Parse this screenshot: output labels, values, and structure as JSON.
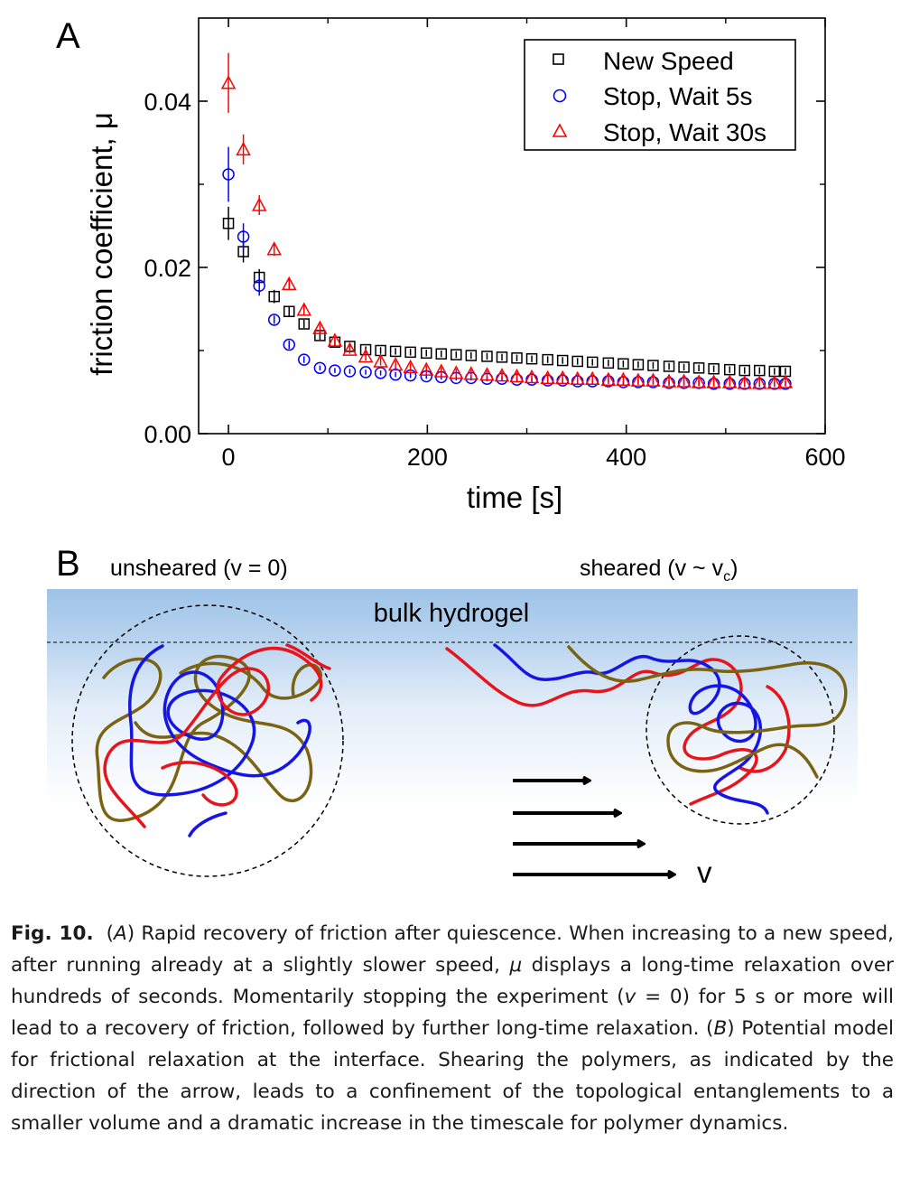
{
  "panel_a": {
    "label": "A",
    "ylabel": "friction coefficient, μ",
    "xlabel": "time [s]",
    "legend": [
      "New Speed",
      "Stop, Wait 5s",
      "Stop, Wait 30s"
    ],
    "xticks": [
      "0",
      "200",
      "400",
      "600"
    ],
    "yticks": [
      "0.00",
      "0.02",
      "0.04"
    ]
  },
  "chart_data": {
    "type": "scatter",
    "xlabel": "time [s]",
    "ylabel": "friction coefficient, μ",
    "xlim": [
      -30,
      600
    ],
    "ylim": [
      0,
      0.05
    ],
    "grid": false,
    "legend_position": "top-right",
    "series": [
      {
        "name": "New Speed",
        "marker": "square",
        "color": "#000000",
        "x": [
          0,
          15,
          31,
          46,
          61,
          76,
          92,
          107,
          122,
          138,
          153,
          168,
          183,
          199,
          214,
          229,
          244,
          260,
          275,
          290,
          305,
          321,
          336,
          351,
          366,
          382,
          397,
          412,
          427,
          443,
          458,
          473,
          488,
          504,
          519,
          534,
          549,
          560
        ],
        "y": [
          0.0253,
          0.0219,
          0.0188,
          0.0165,
          0.0147,
          0.0132,
          0.0118,
          0.011,
          0.0105,
          0.0101,
          0.01,
          0.0099,
          0.0098,
          0.0097,
          0.0096,
          0.0095,
          0.0094,
          0.0093,
          0.0092,
          0.0091,
          0.009,
          0.0089,
          0.0088,
          0.0087,
          0.0086,
          0.0085,
          0.0084,
          0.0083,
          0.0082,
          0.0081,
          0.008,
          0.0079,
          0.0078,
          0.0077,
          0.0076,
          0.0076,
          0.0075,
          0.0075
        ],
        "err": [
          0.002,
          0.0013,
          0.001,
          0.0008,
          0.0006,
          0.0005,
          0.0005,
          0.0004,
          0.0004,
          0.0004,
          0.0004,
          0.0004,
          0.0004,
          0.0004,
          0.0004,
          0.0004,
          0.0004,
          0.0004,
          0.0004,
          0.0004,
          0.0004,
          0.0004,
          0.0004,
          0.0004,
          0.0004,
          0.0004,
          0.0004,
          0.0004,
          0.0004,
          0.0004,
          0.0004,
          0.0004,
          0.0004,
          0.0004,
          0.0004,
          0.0004,
          0.0004,
          0.0004
        ]
      },
      {
        "name": "Stop, Wait 5s",
        "marker": "circle",
        "color": "#0000ff",
        "x": [
          0,
          15,
          31,
          46,
          61,
          76,
          92,
          107,
          122,
          138,
          153,
          168,
          183,
          199,
          214,
          229,
          244,
          260,
          275,
          290,
          305,
          321,
          336,
          351,
          366,
          382,
          397,
          412,
          427,
          443,
          458,
          473,
          488,
          504,
          519,
          534,
          549,
          560
        ],
        "y": [
          0.0312,
          0.0237,
          0.0178,
          0.0137,
          0.0107,
          0.0089,
          0.0079,
          0.0076,
          0.0075,
          0.0074,
          0.0073,
          0.0071,
          0.007,
          0.0069,
          0.0068,
          0.0067,
          0.0067,
          0.0066,
          0.0066,
          0.0065,
          0.0065,
          0.0064,
          0.0064,
          0.0063,
          0.0063,
          0.0063,
          0.0062,
          0.0062,
          0.0062,
          0.0061,
          0.0061,
          0.0061,
          0.006,
          0.006,
          0.006,
          0.006,
          0.006,
          0.006
        ],
        "err": [
          0.0033,
          0.0016,
          0.0012,
          0.0005,
          0.0005,
          0.0004,
          0.0003,
          0.0003,
          0.0003,
          0.0003,
          0.0003,
          0.0003,
          0.0003,
          0.0003,
          0.0003,
          0.0003,
          0.0003,
          0.0003,
          0.0003,
          0.0003,
          0.0003,
          0.0003,
          0.0003,
          0.0003,
          0.0003,
          0.0003,
          0.0003,
          0.0003,
          0.0003,
          0.0003,
          0.0003,
          0.0003,
          0.0003,
          0.0003,
          0.0003,
          0.0003,
          0.0003,
          0.0003
        ]
      },
      {
        "name": "Stop, Wait 30s",
        "marker": "triangle",
        "color": "#ff0000",
        "x": [
          0,
          15,
          31,
          46,
          61,
          76,
          92,
          107,
          122,
          138,
          153,
          168,
          183,
          199,
          214,
          229,
          244,
          260,
          275,
          290,
          305,
          321,
          336,
          351,
          366,
          382,
          397,
          412,
          427,
          443,
          458,
          473,
          488,
          504,
          519,
          534,
          549,
          560
        ],
        "y": [
          0.0422,
          0.0342,
          0.0275,
          0.0222,
          0.018,
          0.0149,
          0.0127,
          0.0112,
          0.0101,
          0.0093,
          0.0087,
          0.0083,
          0.008,
          0.0077,
          0.0075,
          0.0073,
          0.0072,
          0.0071,
          0.007,
          0.0069,
          0.0068,
          0.0067,
          0.0067,
          0.0066,
          0.0066,
          0.0065,
          0.0065,
          0.0064,
          0.0064,
          0.0063,
          0.0063,
          0.0062,
          0.0062,
          0.0062,
          0.0061,
          0.0061,
          0.0061,
          0.0062
        ],
        "err": [
          0.0036,
          0.0018,
          0.0012,
          0.0008,
          0.0006,
          0.0006,
          0.0005,
          0.0005,
          0.0005,
          0.0005,
          0.0005,
          0.0005,
          0.0005,
          0.0005,
          0.0005,
          0.0005,
          0.0005,
          0.0005,
          0.0005,
          0.0005,
          0.0005,
          0.0005,
          0.0005,
          0.0005,
          0.0005,
          0.0005,
          0.0005,
          0.0005,
          0.0005,
          0.0005,
          0.0005,
          0.0005,
          0.0005,
          0.0005,
          0.0005,
          0.0005,
          0.0005,
          0.0005
        ]
      }
    ]
  },
  "panel_b": {
    "label": "B",
    "left_title": "unsheared (v = 0)",
    "right_title_main": "sheared (v ~ v",
    "right_title_sub": "c",
    "right_title_end": ")",
    "bulk_label": "bulk hydrogel",
    "velocity_label": "v",
    "colors": {
      "red": "#e8141b",
      "blue": "#1515e6",
      "olive": "#7a6312",
      "gel_top": "#9ec3e8"
    }
  },
  "caption": {
    "fig_label": "Fig. 10.",
    "p1": "(",
    "a_ref": "A",
    "p2": ") Rapid recovery of friction after quiescence. When increasing to a new speed, after running already at a slightly slower speed, ",
    "mu": "μ",
    "p3": " displays a long-time relaxation over hundreds of seconds. Momentarily stopping the experiment (",
    "v_sym": "v",
    "p4": " = 0) for 5 s or more will lead to a recovery of friction, followed by further long-time relaxation. (",
    "b_ref": "B",
    "p5": ") Potential model for frictional relaxation at the interface. Shearing the polymers, as indicated by the direction of the arrow, leads to a confinement of the topological entanglements to a smaller volume and a dramatic increase in the timescale for polymer dynamics."
  }
}
